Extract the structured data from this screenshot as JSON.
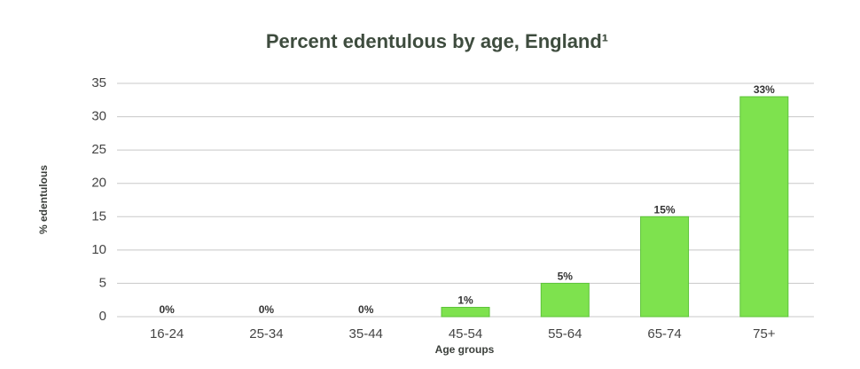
{
  "chart_data": {
    "type": "bar",
    "title": "Percent edentulous by age, England¹",
    "x_label": "Age groups",
    "y_label": "% edentulous",
    "categories": [
      "16-24",
      "25-34",
      "35-44",
      "45-54",
      "55-64",
      "65-74",
      "75+"
    ],
    "values": [
      0,
      0,
      0,
      1.4,
      5,
      15,
      33
    ],
    "value_labels": [
      "0%",
      "0%",
      "0%",
      "1%",
      "5%",
      "15%",
      "33%"
    ],
    "color": "#7ee24e",
    "ylim": [
      0,
      35
    ],
    "yticks": [
      0,
      5,
      10,
      15,
      20,
      25,
      30,
      35
    ],
    "grid": true
  }
}
